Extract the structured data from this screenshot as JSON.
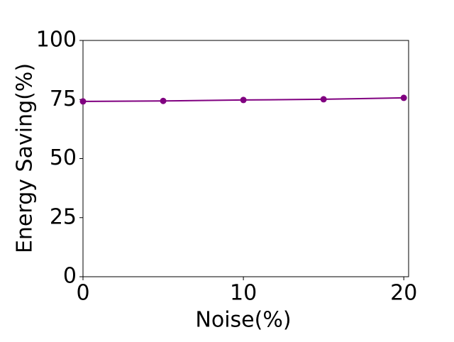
{
  "chart_data": {
    "type": "line",
    "x_label": "Noise(%)",
    "y_label": "Energy Saving(%)",
    "x": [
      0,
      5,
      10,
      15,
      20
    ],
    "series": [
      {
        "color": "#800080",
        "values": [
          74.2,
          74.4,
          74.8,
          75.1,
          75.7
        ]
      }
    ],
    "xlim": [
      0,
      20.3
    ],
    "xticks": [
      0,
      10,
      20
    ],
    "ylim": [
      0,
      100
    ],
    "yticks": [
      0,
      25,
      50,
      75,
      100
    ],
    "grid": false
  }
}
